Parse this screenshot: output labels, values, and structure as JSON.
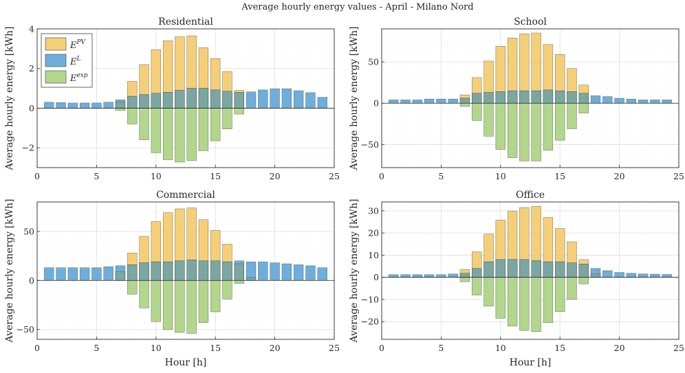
{
  "figure": {
    "suptitle": "Average hourly energy values - April - Milano Nord",
    "legend": [
      {
        "key": "pv",
        "base": "E",
        "sup": "PV",
        "color": "#F5CF78"
      },
      {
        "key": "load",
        "base": "E",
        "sup": "L",
        "color": "#6EAEDB"
      },
      {
        "key": "exp",
        "base": "E",
        "sup": "exp",
        "color": "#B2D68C"
      }
    ],
    "colors": {
      "pv": "#F5CF78",
      "load": "#6EAEDB",
      "exp": "#B2D68C",
      "overlap": "#7BA7A3",
      "edge": "#3a3a3a"
    }
  },
  "chart_data": [
    {
      "type": "bar",
      "title": "Residential",
      "xlabel": "",
      "ylabel": "Average hourly energy [kWh]",
      "xlim": [
        0,
        25
      ],
      "ylim": [
        -3,
        4
      ],
      "xticks": [
        0,
        5,
        10,
        15,
        20,
        25
      ],
      "yticks": [
        -2,
        0,
        2,
        4
      ],
      "grid": true,
      "legend_position": "top-left",
      "x": [
        1,
        2,
        3,
        4,
        5,
        6,
        7,
        8,
        9,
        10,
        11,
        12,
        13,
        14,
        15,
        16,
        17,
        18,
        19,
        20,
        21,
        22,
        23,
        24
      ],
      "series": [
        {
          "name": "E^PV",
          "values": [
            0,
            0,
            0,
            0,
            0,
            0,
            0.3,
            1.35,
            2.2,
            2.95,
            3.4,
            3.6,
            3.65,
            3.05,
            2.5,
            1.85,
            0.9,
            0,
            0,
            0,
            0,
            0,
            0,
            0
          ]
        },
        {
          "name": "E^L",
          "values": [
            0.3,
            0.28,
            0.26,
            0.26,
            0.26,
            0.3,
            0.42,
            0.6,
            0.68,
            0.75,
            0.8,
            0.9,
            1.0,
            1.0,
            0.92,
            0.85,
            0.8,
            0.82,
            0.92,
            0.98,
            0.98,
            0.88,
            0.78,
            0.55
          ]
        },
        {
          "name": "E^exp",
          "values": [
            0,
            0,
            0,
            0,
            0,
            0,
            -0.12,
            -0.8,
            -1.6,
            -2.25,
            -2.6,
            -2.72,
            -2.65,
            -2.15,
            -1.65,
            -1.05,
            -0.3,
            0,
            0,
            0,
            0,
            0,
            0,
            0
          ]
        }
      ]
    },
    {
      "type": "bar",
      "title": "School",
      "xlabel": "",
      "ylabel": "Average hourly energy [kWh]",
      "xlim": [
        0,
        25
      ],
      "ylim": [
        -78,
        90
      ],
      "xticks": [
        0,
        5,
        10,
        15,
        20,
        25
      ],
      "yticks": [
        -50,
        0,
        50
      ],
      "grid": true,
      "x": [
        1,
        2,
        3,
        4,
        5,
        6,
        7,
        8,
        9,
        10,
        11,
        12,
        13,
        14,
        15,
        16,
        17,
        18,
        19,
        20,
        21,
        22,
        23,
        24
      ],
      "series": [
        {
          "name": "E^PV",
          "values": [
            0,
            0,
            0,
            0,
            0,
            0,
            10,
            31,
            51,
            69,
            79,
            84,
            85,
            71,
            59,
            42,
            22,
            0,
            0,
            0,
            0,
            0,
            0,
            0
          ]
        },
        {
          "name": "E^L",
          "values": [
            4,
            4,
            4,
            5,
            5,
            5,
            6,
            12,
            13,
            14,
            15,
            15,
            15,
            16,
            15,
            14,
            12,
            9,
            8,
            6,
            5,
            4,
            4,
            4
          ]
        },
        {
          "name": "E^exp",
          "values": [
            0,
            0,
            0,
            0,
            0,
            0,
            -4,
            -21,
            -40,
            -56,
            -66,
            -70,
            -70,
            -57,
            -45,
            -31,
            -12,
            0,
            0,
            0,
            0,
            0,
            0,
            0
          ]
        }
      ]
    },
    {
      "type": "bar",
      "title": "Commercial",
      "xlabel": "Hour [h]",
      "ylabel": "Average hourly energy [kWh]",
      "xlim": [
        0,
        25
      ],
      "ylim": [
        -60,
        80
      ],
      "xticks": [
        0,
        5,
        10,
        15,
        20,
        25
      ],
      "yticks": [
        -50,
        0,
        50
      ],
      "grid": true,
      "x": [
        1,
        2,
        3,
        4,
        5,
        6,
        7,
        8,
        9,
        10,
        11,
        12,
        13,
        14,
        15,
        16,
        17,
        18,
        19,
        20,
        21,
        22,
        23,
        24
      ],
      "series": [
        {
          "name": "E^PV",
          "values": [
            0,
            0,
            0,
            0,
            0,
            0,
            9,
            28,
            45,
            60,
            69,
            73,
            74,
            62,
            51,
            37,
            17,
            3,
            0,
            0,
            0,
            0,
            0,
            0
          ]
        },
        {
          "name": "E^L",
          "values": [
            13,
            13,
            13,
            13,
            13,
            14,
            15,
            16,
            18,
            19,
            19,
            20,
            21,
            20,
            20,
            19,
            20,
            19,
            19,
            18,
            17,
            16,
            15,
            13
          ]
        },
        {
          "name": "E^exp",
          "values": [
            0,
            0,
            0,
            0,
            0,
            0,
            0,
            -14,
            -28,
            -42,
            -50,
            -53,
            -54,
            -43,
            -32,
            -19,
            -3,
            0,
            0,
            0,
            0,
            0,
            0,
            0
          ]
        }
      ]
    },
    {
      "type": "bar",
      "title": "Office",
      "xlabel": "Hour [h]",
      "ylabel": "Average hourly energy [kWh]",
      "xlim": [
        0,
        25
      ],
      "ylim": [
        -28,
        34
      ],
      "xticks": [
        0,
        5,
        10,
        15,
        20,
        25
      ],
      "yticks": [
        -20,
        -10,
        0,
        10,
        20,
        30
      ],
      "grid": true,
      "x": [
        1,
        2,
        3,
        4,
        5,
        6,
        7,
        8,
        9,
        10,
        11,
        12,
        13,
        14,
        15,
        16,
        17,
        18,
        19,
        20,
        21,
        22,
        23,
        24
      ],
      "series": [
        {
          "name": "E^PV",
          "values": [
            0,
            0,
            0,
            0,
            0,
            0,
            3.5,
            11.5,
            19.5,
            25.8,
            29.8,
            31.5,
            32,
            27,
            22,
            16,
            8,
            1.5,
            0,
            0,
            0,
            0,
            0,
            0
          ]
        },
        {
          "name": "E^L",
          "values": [
            1.2,
            1.2,
            1.2,
            1.2,
            1.2,
            1.5,
            1.8,
            4,
            7,
            8,
            8,
            8,
            7.5,
            7,
            7,
            6.5,
            6,
            4,
            3,
            2.2,
            1.8,
            1.5,
            1.4,
            1.3
          ]
        },
        {
          "name": "E^exp",
          "values": [
            0,
            0,
            0,
            0,
            0,
            0,
            -2,
            -8,
            -13,
            -18.5,
            -22,
            -24,
            -24.5,
            -20.5,
            -15.5,
            -10,
            -3,
            0,
            0,
            0,
            0,
            0,
            0,
            0
          ]
        }
      ]
    }
  ]
}
